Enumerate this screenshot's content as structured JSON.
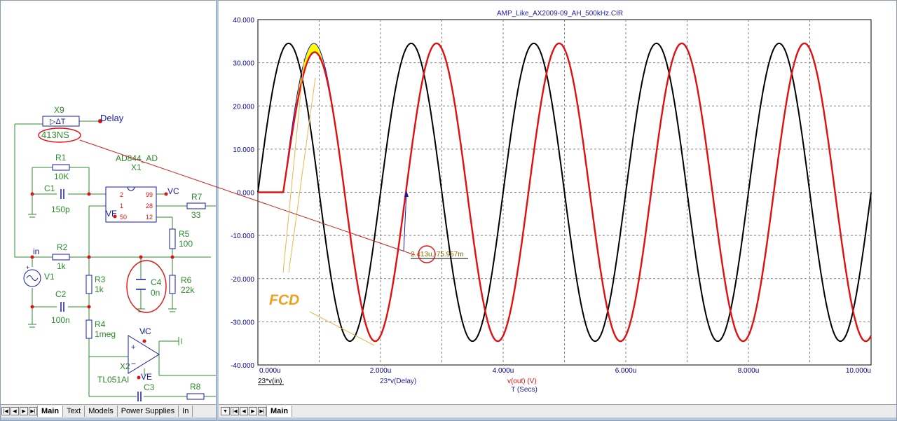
{
  "schematic": {
    "labels": {
      "x9_name": "X9",
      "x9_symbol": "▷ΔT",
      "delay_net": "Delay",
      "x9_value": "413NS",
      "r1_name": "R1",
      "r1_value": "10K",
      "ic_part": "AD844_AD",
      "x1_name": "X1",
      "c1_name": "C1",
      "c1_value": "150p",
      "pin2": "2",
      "pin1": "1",
      "pin50": "50",
      "pin99": "99",
      "pin28": "28",
      "pin12": "12",
      "vc1": "VC",
      "ve1": "VE",
      "r7_name": "R7",
      "r7_value": "33",
      "r5_name": "R5",
      "r5_value": "100",
      "in_net": "in",
      "r2_name": "R2",
      "r2_value": "1k",
      "v1_name": "V1",
      "r3_name": "R3",
      "r3_value": "1k",
      "c4_name": "C4",
      "c4_value": "0n",
      "r6_name": "R6",
      "r6_value": "22k",
      "c2_name": "C2",
      "c2_value": "100n",
      "r4_name": "R4",
      "r4_value": "1meg",
      "vc2": "VC",
      "ve2": "VE",
      "x2_name": "X2",
      "x2_part": "TL051AI",
      "c3_name": "C3",
      "r8_name": "R8"
    },
    "tabs": [
      "Main",
      "Text",
      "Models",
      "Power Supplies",
      "In"
    ],
    "active_tab": "Main"
  },
  "plot": {
    "title": "AMP_Like_AX2009-09_AH_500kHz.CIR",
    "cursor_readout": "2.413u,-75.957m",
    "annotation": "FCD",
    "tabs": [
      "Main"
    ],
    "colors": {
      "black": "#000000",
      "blue": "#1010d0",
      "red": "#e01010",
      "highlight": "#ffff00",
      "axis_text": "#00008b",
      "grid": "#808080"
    }
  },
  "chart_data": {
    "type": "line",
    "title": "AMP_Like_AX2009-09_AH_500kHz.CIR",
    "xlabel": "T (Secs)",
    "xlim": [
      0,
      10
    ],
    "ylim": [
      -40,
      40
    ],
    "yticks": [
      "40.000",
      "30.000",
      "20.000",
      "10.000",
      "0.000",
      "-10.000",
      "-20.000",
      "-30.000",
      "-40.000"
    ],
    "xticks": [
      "0.000u",
      "2.000u",
      "4.000u",
      "6.000u",
      "8.000u",
      "10.000u"
    ],
    "grid": true,
    "series": [
      {
        "name": "23*v(in)",
        "color": "#000000",
        "amplitude": 34.5,
        "frequency_MHz": 0.5,
        "delay_us": 0,
        "start_us": 0
      },
      {
        "name": "23*v(Delay)",
        "color": "#1010d0",
        "amplitude": 34.5,
        "frequency_MHz": 0.5,
        "delay_us": 0.413,
        "start_us": 0.413
      },
      {
        "name": "v(out) (V)",
        "color": "#e01010",
        "amplitude": 34.5,
        "frequency_MHz": 0.5,
        "delay_us": 0.413,
        "start_us": 0
      }
    ]
  }
}
